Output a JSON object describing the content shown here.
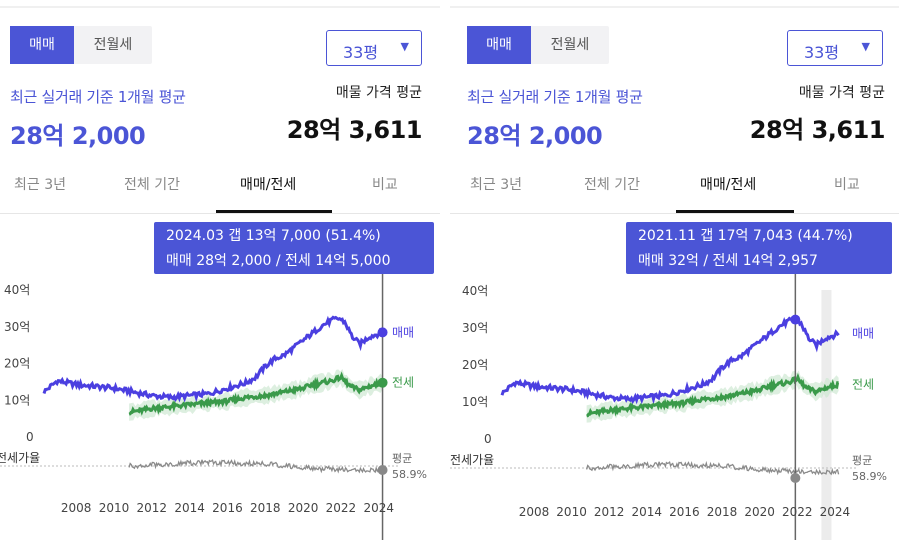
{
  "panels": [
    {
      "toggle": {
        "sale": "매매",
        "rent": "전월세"
      },
      "area_select": {
        "value": "33평",
        "arrow": "▼"
      },
      "summary": {
        "label": "최근 실거래 기준 1개월 평균",
        "value": "28억 2,000"
      },
      "asking": {
        "label": "매물 가격 평균",
        "value": "28억 3,611"
      },
      "tabs": [
        "최근 3년",
        "전체 기간",
        "매매/전세",
        "비교"
      ],
      "active_tab": 2,
      "tooltip": {
        "line1": "2024.03  갭 13억 7,000 (51.4%)",
        "line2": "매매 28억 2,000 / 전세 14억 5,000"
      }
    },
    {
      "toggle": {
        "sale": "매매",
        "rent": "전월세"
      },
      "area_select": {
        "value": "33평",
        "arrow": "▼"
      },
      "summary": {
        "label": "최근 실거래 기준 1개월 평균",
        "value": "28억 2,000"
      },
      "asking": {
        "label": "매물 가격 평균",
        "value": "28억 3,611"
      },
      "tabs": [
        "최근 3년",
        "전체 기간",
        "매매/전세",
        "비교"
      ],
      "active_tab": 2,
      "tooltip": {
        "line1": "2021.11  갭 17억 7,043 (44.7%)",
        "line2": "매매 32억 / 전세 14억 2,957"
      }
    }
  ],
  "colors": {
    "accent": "#4b55d6",
    "sale_line": "#4b3fe0",
    "rent_line": "#3a9a4a",
    "ratio_line": "#8a8a8a"
  },
  "chart_data": [
    {
      "type": "line",
      "y_ticks": [
        "40억",
        "30억",
        "20억",
        "10억",
        "0"
      ],
      "ylim": [
        0,
        40
      ],
      "x_ticks": [
        "2008",
        "2010",
        "2012",
        "2014",
        "2016",
        "2018",
        "2020",
        "2022",
        "2024"
      ],
      "xlim": [
        2006.3,
        2024.7
      ],
      "series": [
        {
          "name": "매매",
          "x": [
            2006.3,
            2007,
            2008,
            2009,
            2010,
            2011,
            2012,
            2013,
            2014,
            2015,
            2016,
            2017,
            2017.5,
            2018,
            2018.5,
            2019,
            2019.5,
            2020,
            2020.5,
            2021,
            2021.5,
            2021.9,
            2022.2,
            2022.6,
            2023,
            2023.5,
            2024.2
          ],
          "values": [
            12,
            15,
            14,
            13.5,
            13,
            12,
            11,
            10.5,
            11,
            11.5,
            13,
            14.5,
            16,
            19,
            21,
            22,
            24,
            26,
            28,
            30,
            31.5,
            32,
            31,
            27,
            25,
            27,
            28.2
          ]
        },
        {
          "name": "전세",
          "x": [
            2010.8,
            2011.5,
            2012,
            2013,
            2014,
            2015,
            2016,
            2017,
            2018,
            2019,
            2020,
            2020.5,
            2021,
            2021.5,
            2022,
            2022.5,
            2023,
            2023.5,
            2024.2
          ],
          "values": [
            6.5,
            7,
            7.5,
            8,
            8.5,
            9,
            9.5,
            10.5,
            11,
            12,
            13,
            14,
            14.5,
            15,
            16,
            13.5,
            12.5,
            13.5,
            14.5
          ]
        }
      ],
      "ratio": {
        "label": "전세가율",
        "average_label": "평균",
        "average_value": "58.9%"
      },
      "marker_x": 2024.2
    },
    {
      "type": "line",
      "y_ticks": [
        "40억",
        "30억",
        "20억",
        "10억",
        "0"
      ],
      "ylim": [
        0,
        40
      ],
      "x_ticks": [
        "2008",
        "2010",
        "2012",
        "2014",
        "2016",
        "2018",
        "2020",
        "2022",
        "2024"
      ],
      "xlim": [
        2006.3,
        2024.7
      ],
      "series": [
        {
          "name": "매매",
          "x": [
            2006.3,
            2007,
            2008,
            2009,
            2010,
            2011,
            2012,
            2013,
            2014,
            2015,
            2016,
            2017,
            2017.5,
            2018,
            2018.5,
            2019,
            2019.5,
            2020,
            2020.5,
            2021,
            2021.5,
            2021.9,
            2022.2,
            2022.6,
            2023,
            2023.5,
            2024.2
          ],
          "values": [
            12,
            15,
            14,
            13.5,
            13,
            12,
            11,
            10.5,
            11,
            11.5,
            13,
            14.5,
            16,
            19,
            21,
            22,
            24,
            26,
            28,
            30,
            31.5,
            32,
            31,
            27,
            25,
            27,
            28.2
          ]
        },
        {
          "name": "전세",
          "x": [
            2010.8,
            2011.5,
            2012,
            2013,
            2014,
            2015,
            2016,
            2017,
            2018,
            2019,
            2020,
            2020.5,
            2021,
            2021.5,
            2022,
            2022.5,
            2023,
            2023.5,
            2024.2
          ],
          "values": [
            6.5,
            7,
            7.5,
            8,
            8.5,
            9,
            9.5,
            10.5,
            11,
            12,
            13,
            14,
            14.5,
            15,
            16,
            13.5,
            12.5,
            13.5,
            14.5
          ]
        }
      ],
      "ratio": {
        "label": "전세가율",
        "average_label": "평균",
        "average_value": "58.9%"
      },
      "marker_x": 2021.9
    }
  ]
}
